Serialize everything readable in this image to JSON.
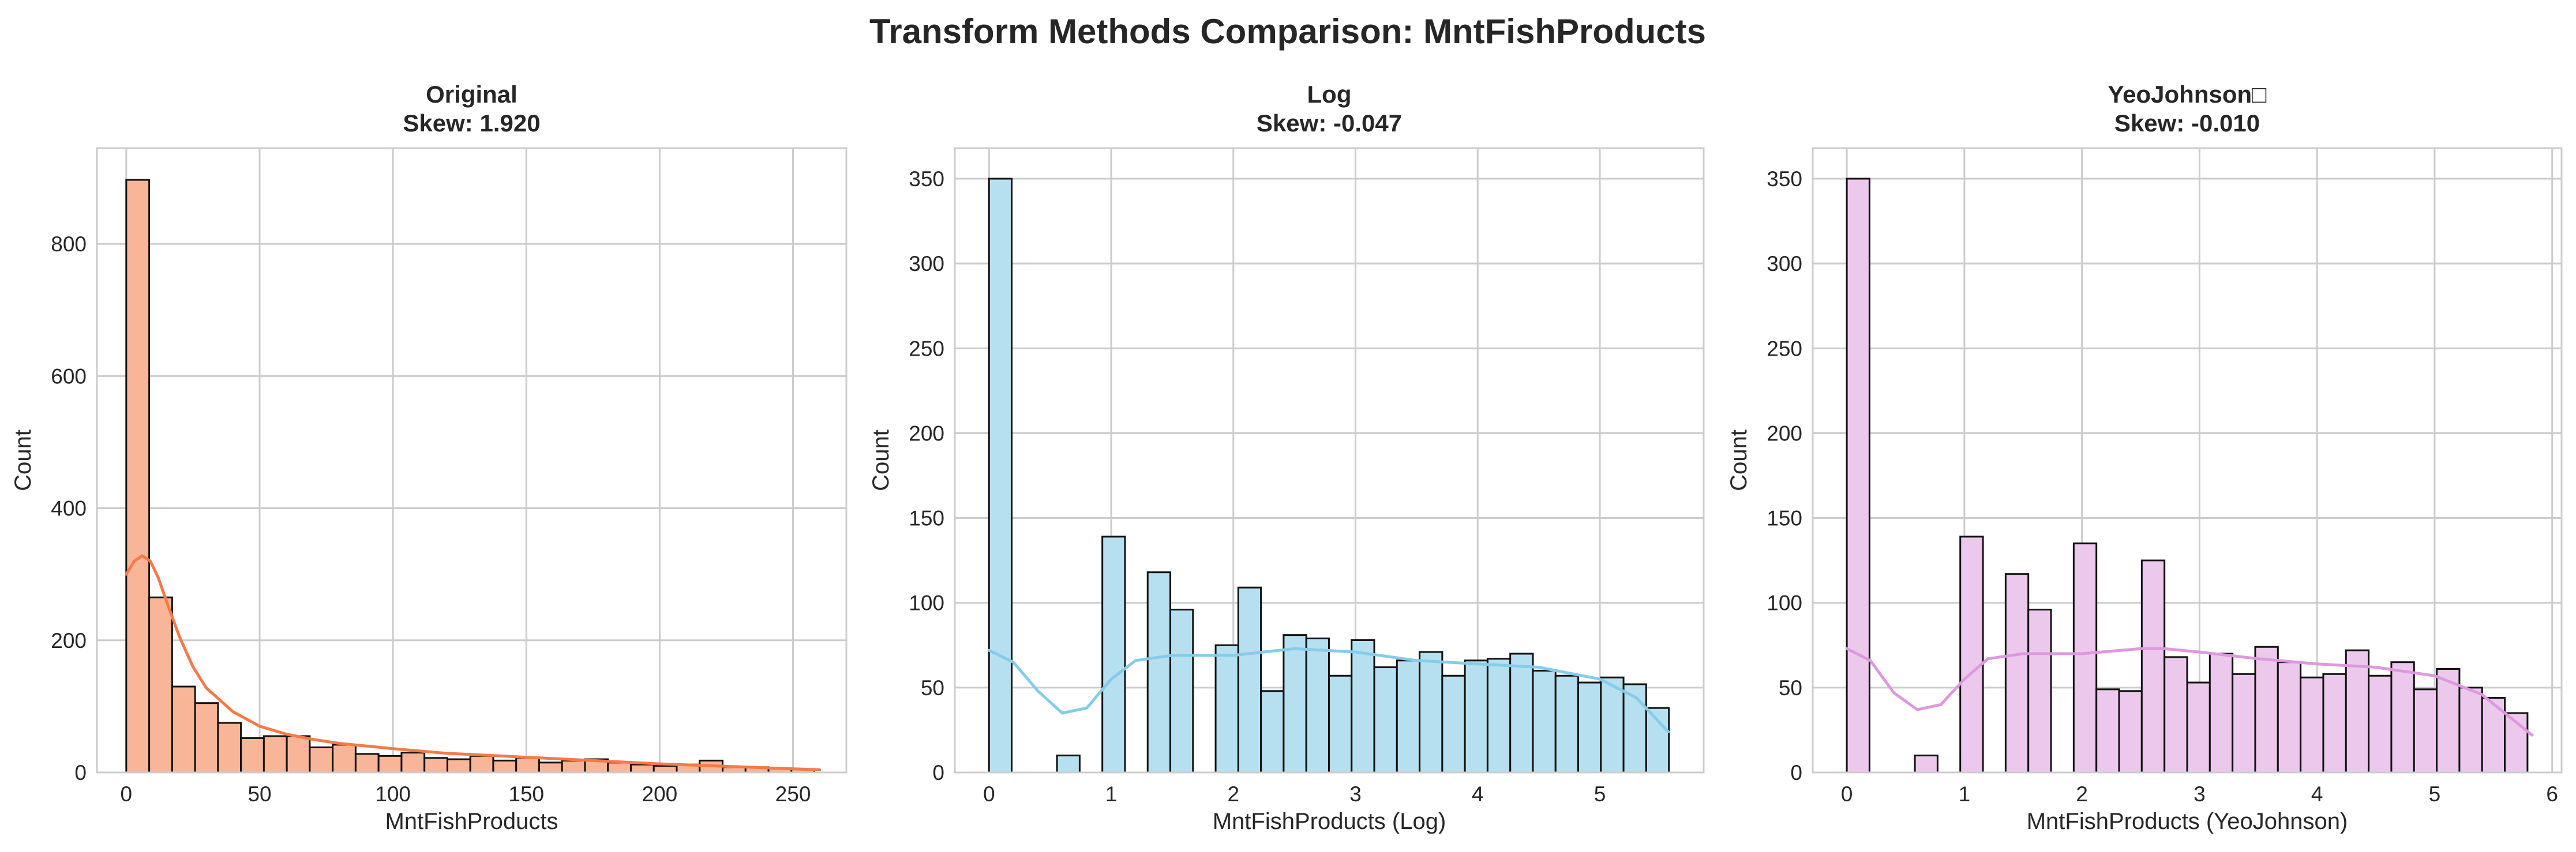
{
  "figure": {
    "title": "Transform Methods Comparison: MntFishProducts"
  },
  "chart_data": [
    {
      "type": "bar",
      "title_line1": "Original",
      "title_line2": "Skew: 1.920",
      "xlabel": "MntFishProducts",
      "ylabel": "Count",
      "xlim": [
        -11,
        270
      ],
      "ylim": [
        0,
        945
      ],
      "xticks": [
        0,
        50,
        100,
        150,
        200,
        250
      ],
      "xtick_labels": [
        "0",
        "50",
        "100",
        "150",
        "200",
        "250"
      ],
      "yticks": [
        0,
        200,
        400,
        600,
        800
      ],
      "ytick_labels": [
        "0",
        "200",
        "400",
        "600",
        "800"
      ],
      "bin_start": 0,
      "bin_width": 8.6,
      "values": [
        897,
        265,
        130,
        105,
        75,
        52,
        55,
        55,
        38,
        42,
        28,
        25,
        30,
        22,
        20,
        25,
        18,
        22,
        15,
        18,
        20,
        15,
        12,
        10,
        12,
        18,
        8,
        8,
        6,
        5
      ],
      "fill_color": "#f9b597",
      "line_color": "#f47a48",
      "kde": {
        "x": [
          0,
          3,
          6,
          9,
          12,
          15,
          20,
          25,
          30,
          40,
          50,
          60,
          70,
          80,
          100,
          120,
          140,
          160,
          180,
          200,
          220,
          240,
          260
        ],
        "y": [
          300,
          320,
          328,
          320,
          295,
          260,
          205,
          160,
          128,
          92,
          70,
          58,
          50,
          44,
          36,
          29,
          25,
          21,
          17,
          13,
          10,
          7,
          4
        ]
      }
    },
    {
      "type": "bar",
      "title_line1": "Log",
      "title_line2": "Skew: -0.047",
      "xlabel": "MntFishProducts (Log)",
      "ylabel": "Count",
      "xlim": [
        -0.28,
        5.85
      ],
      "ylim": [
        0,
        368
      ],
      "xticks": [
        0,
        1,
        2,
        3,
        4,
        5
      ],
      "xtick_labels": [
        "0",
        "1",
        "2",
        "3",
        "4",
        "5"
      ],
      "yticks": [
        0,
        50,
        100,
        150,
        200,
        250,
        300,
        350
      ],
      "ytick_labels": [
        "0",
        "50",
        "100",
        "150",
        "200",
        "250",
        "300",
        "350"
      ],
      "bin_start": 0,
      "bin_width": 0.1855,
      "values": [
        350,
        0,
        0,
        10,
        0,
        139,
        0,
        118,
        96,
        0,
        75,
        109,
        48,
        81,
        79,
        57,
        78,
        62,
        66,
        71,
        57,
        66,
        67,
        70,
        60,
        57,
        53,
        56,
        52,
        38
      ],
      "fill_color": "#b6e0f0",
      "line_color": "#85cce8",
      "kde": {
        "x": [
          0,
          0.2,
          0.4,
          0.6,
          0.8,
          1.0,
          1.2,
          1.5,
          2.0,
          2.5,
          3.0,
          3.5,
          4.0,
          4.5,
          5.0,
          5.3,
          5.56
        ],
        "y": [
          72,
          65,
          48,
          35,
          38,
          55,
          66,
          69,
          69,
          73,
          71,
          66,
          64,
          62,
          55,
          44,
          24
        ]
      }
    },
    {
      "type": "bar",
      "title_line1": "YeoJohnson□",
      "title_line2": "Skew: -0.010",
      "xlabel": "MntFishProducts (YeoJohnson)",
      "ylabel": "Count",
      "xlim": [
        -0.29,
        6.08
      ],
      "ylim": [
        0,
        368
      ],
      "xticks": [
        0,
        1,
        2,
        3,
        4,
        5,
        6
      ],
      "xtick_labels": [
        "0",
        "1",
        "2",
        "3",
        "4",
        "5",
        "6"
      ],
      "yticks": [
        0,
        50,
        100,
        150,
        200,
        250,
        300,
        350
      ],
      "ytick_labels": [
        "0",
        "50",
        "100",
        "150",
        "200",
        "250",
        "300",
        "350"
      ],
      "bin_start": 0,
      "bin_width": 0.193,
      "values": [
        350,
        0,
        0,
        10,
        0,
        139,
        0,
        117,
        96,
        0,
        135,
        49,
        48,
        125,
        68,
        53,
        70,
        58,
        74,
        65,
        56,
        58,
        72,
        57,
        65,
        49,
        61,
        50,
        44,
        35
      ],
      "fill_color": "#ecc9ec",
      "line_color": "#dd99dd",
      "kde": {
        "x": [
          0,
          0.2,
          0.4,
          0.6,
          0.8,
          1.0,
          1.2,
          1.5,
          2.0,
          2.5,
          2.7,
          3.0,
          3.5,
          4.0,
          4.5,
          5.0,
          5.4,
          5.83
        ],
        "y": [
          73,
          66,
          47,
          37,
          40,
          55,
          67,
          70,
          70,
          73,
          73,
          71,
          67,
          64,
          62,
          57,
          46,
          22
        ]
      }
    }
  ]
}
